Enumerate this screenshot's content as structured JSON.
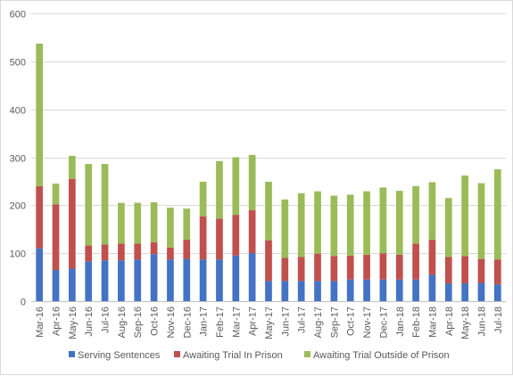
{
  "chart_data": {
    "type": "bar",
    "stacked": true,
    "title": "",
    "xlabel": "",
    "ylabel": "",
    "ylim": [
      0,
      600
    ],
    "yticks": [
      "0",
      "100",
      "200",
      "300",
      "400",
      "500",
      "600"
    ],
    "grid": true,
    "legend_position": "bottom",
    "categories": [
      "Mar-16",
      "Apr-16",
      "May-16",
      "Jun-16",
      "Jul-16",
      "Aug-16",
      "Sep-16",
      "Oct-16",
      "Nov-16",
      "Dec-16",
      "Jan-17",
      "Feb-17",
      "Mar-17",
      "Apr-17",
      "May-17",
      "Jun-17",
      "Jul-17",
      "Aug-17",
      "Sep-17",
      "Oct-17",
      "Nov-17",
      "Dec-17",
      "Jan-18",
      "Feb-18",
      "Mar-18",
      "Apr-18",
      "May-18",
      "Jun-18",
      "Jul-18"
    ],
    "series": [
      {
        "name": "Serving Sentences",
        "color": "#4472c4",
        "values": [
          110,
          65,
          68,
          83,
          85,
          85,
          87,
          98,
          87,
          88,
          87,
          87,
          95,
          100,
          42,
          42,
          42,
          42,
          42,
          45,
          45,
          45,
          45,
          45,
          55,
          37,
          37,
          38,
          35
        ]
      },
      {
        "name": "Awaiting Trial In Prison",
        "color": "#c0504d",
        "values": [
          130,
          137,
          187,
          33,
          33,
          35,
          33,
          25,
          25,
          40,
          90,
          85,
          85,
          90,
          85,
          48,
          50,
          57,
          52,
          50,
          52,
          55,
          52,
          75,
          73,
          55,
          57,
          50,
          52
        ]
      },
      {
        "name": "Awaiting Trial Outside of Prison",
        "color": "#9bbb59",
        "values": [
          297,
          43,
          48,
          170,
          168,
          85,
          85,
          83,
          83,
          65,
          72,
          120,
          120,
          115,
          122,
          122,
          133,
          130,
          126,
          127,
          132,
          137,
          133,
          120,
          120,
          123,
          168,
          158,
          188
        ]
      }
    ]
  }
}
